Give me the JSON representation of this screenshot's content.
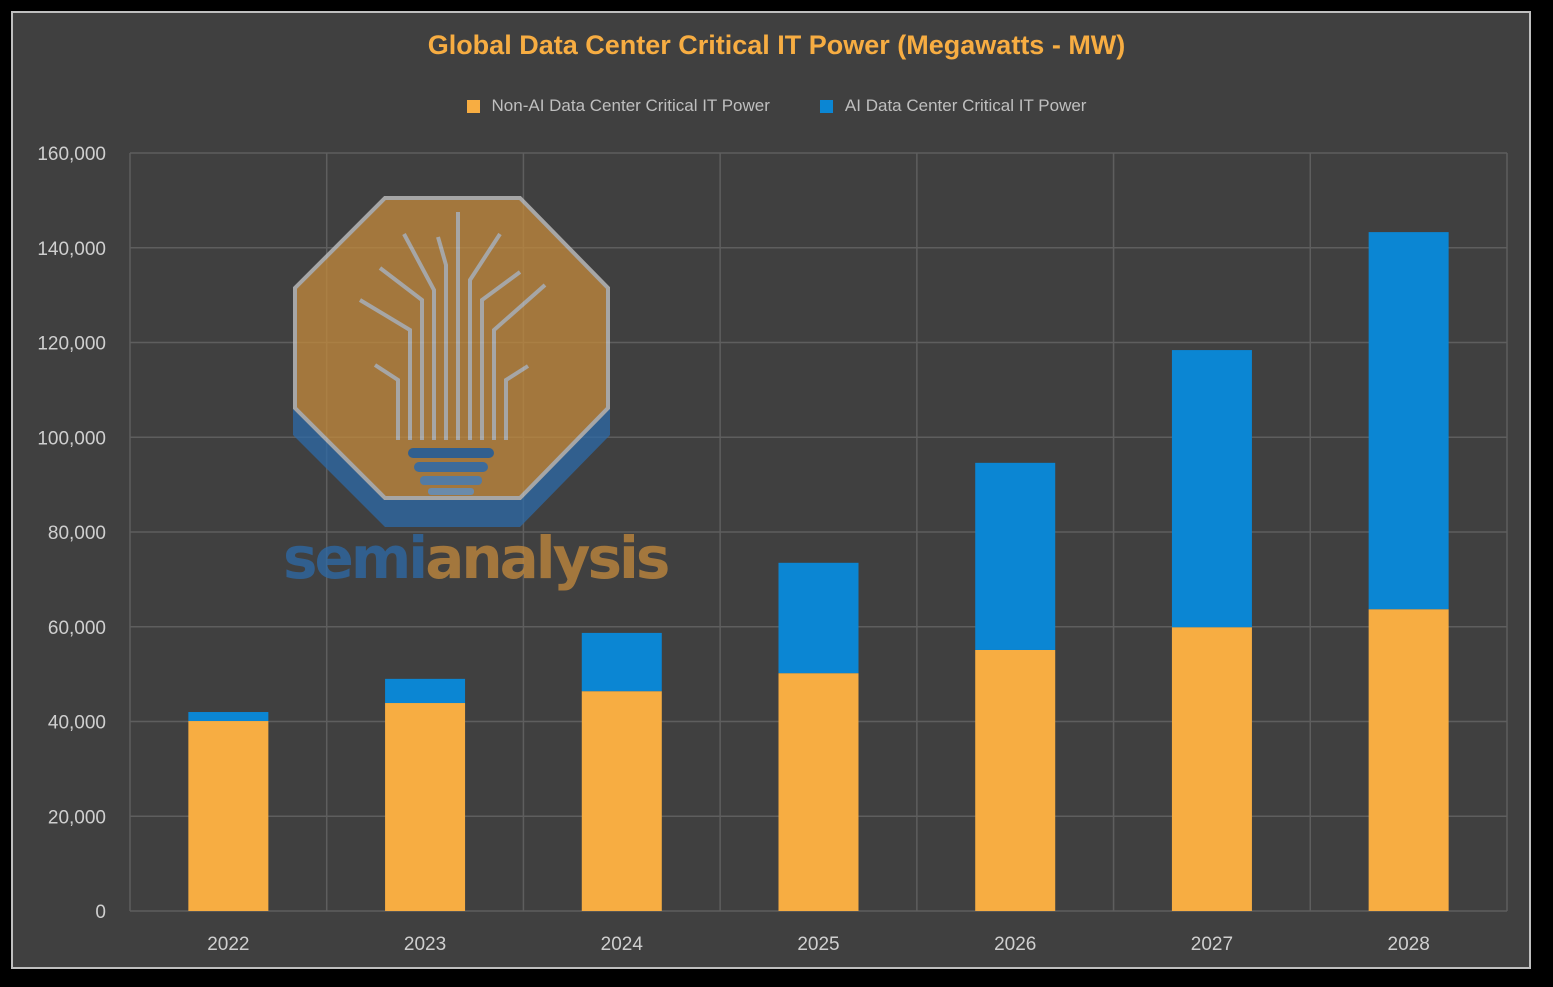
{
  "colors": {
    "background": "#404040",
    "non_ai": "#f7ad42",
    "ai": "#0b86d3",
    "grid": "#5a5a5a",
    "text": "#d0d0d0",
    "title": "#f7ad42"
  },
  "logo": {
    "text_left": "semi",
    "text_right": "analysis"
  },
  "chart_data": {
    "type": "bar",
    "stacked": true,
    "title": "Global Data Center Critical IT Power (Megawatts - MW)",
    "xlabel": "",
    "ylabel": "",
    "categories": [
      "2022",
      "2023",
      "2024",
      "2025",
      "2026",
      "2027",
      "2028"
    ],
    "series": [
      {
        "name": "Non-AI Data Center Critical IT Power",
        "color": "#f7ad42",
        "values": [
          40100,
          43900,
          46400,
          50200,
          55100,
          59900,
          63700
        ]
      },
      {
        "name": "AI Data Center Critical IT Power",
        "color": "#0b86d3",
        "values": [
          1900,
          5100,
          12300,
          23300,
          39500,
          58500,
          79600
        ]
      }
    ],
    "ylim": [
      0,
      160000
    ],
    "yticks": [
      "0",
      "20,000",
      "40,000",
      "60,000",
      "80,000",
      "100,000",
      "120,000",
      "140,000",
      "160,000"
    ],
    "grid": true,
    "legend": "top"
  }
}
